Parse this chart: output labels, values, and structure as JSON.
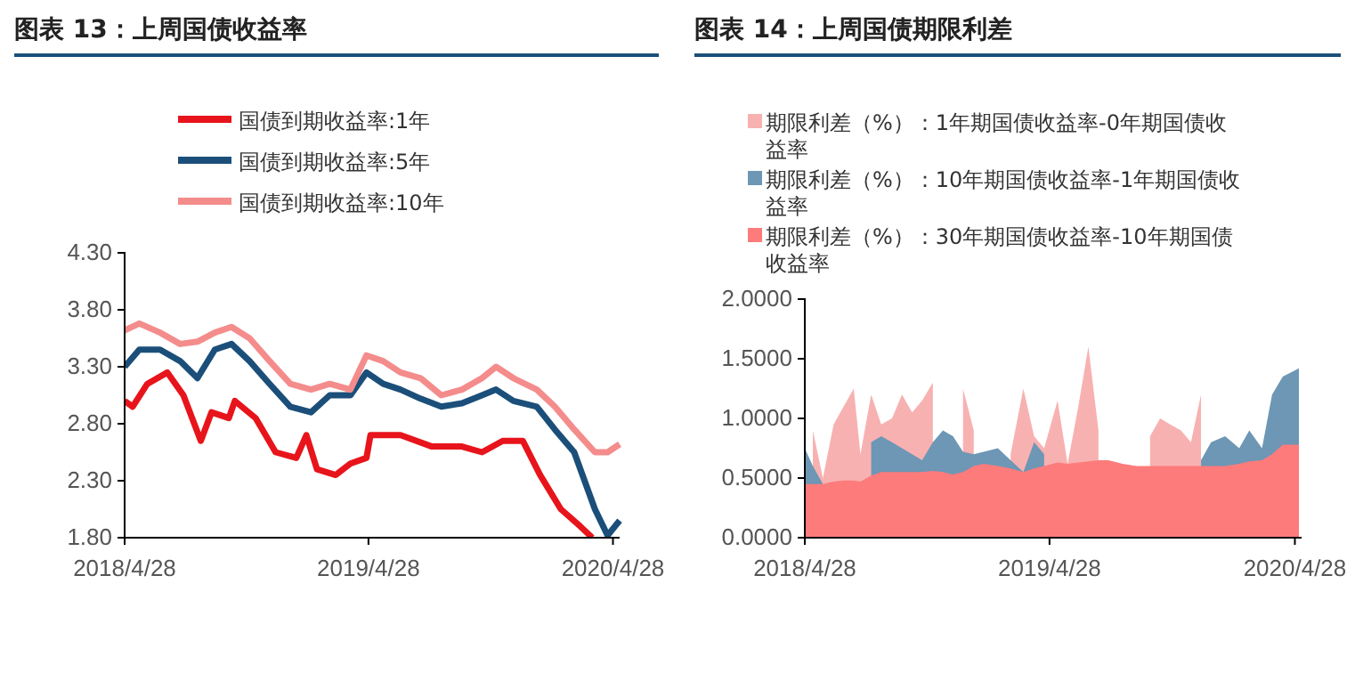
{
  "chart_data": [
    {
      "type": "line",
      "title": "图表 13：上周国债收益率",
      "legend": "top",
      "grid": false,
      "marker": "none",
      "xlim": [
        "2018-04-28",
        "2020-05-08"
      ],
      "xticks": [
        {
          "value": "2018-04-28",
          "label": "2018/4/28"
        },
        {
          "value": "2019-04-28",
          "label": "2019/4/28"
        },
        {
          "value": "2020-04-28",
          "label": "2020/4/28"
        }
      ],
      "ylim": [
        1.8,
        4.3
      ],
      "yticks": [
        {
          "value": 1.8,
          "label": "1.80"
        },
        {
          "value": 2.3,
          "label": "2.30"
        },
        {
          "value": 2.8,
          "label": "2.80"
        },
        {
          "value": 3.3,
          "label": "3.30"
        },
        {
          "value": 3.8,
          "label": "3.80"
        },
        {
          "value": 4.3,
          "label": "4.30"
        }
      ],
      "series": [
        {
          "name": "国债到期收益率:1年",
          "color": "#e8141b",
          "x": [
            "2018-04-28",
            "2018-05-10",
            "2018-06-01",
            "2018-07-01",
            "2018-07-25",
            "2018-08-20",
            "2018-09-05",
            "2018-10-01",
            "2018-10-10",
            "2018-11-10",
            "2018-12-10",
            "2019-01-10",
            "2019-01-25",
            "2019-02-10",
            "2019-03-10",
            "2019-04-01",
            "2019-04-25",
            "2019-05-01",
            "2019-06-15",
            "2019-08-01",
            "2019-09-15",
            "2019-10-15",
            "2019-11-15",
            "2019-12-15",
            "2020-01-10",
            "2020-02-10",
            "2020-03-10",
            "2020-03-28"
          ],
          "values": [
            3.0,
            2.95,
            3.15,
            3.25,
            3.05,
            2.65,
            2.9,
            2.85,
            3.0,
            2.85,
            2.55,
            2.5,
            2.7,
            2.4,
            2.35,
            2.45,
            2.5,
            2.7,
            2.7,
            2.6,
            2.6,
            2.55,
            2.65,
            2.65,
            2.35,
            2.05,
            1.9,
            1.8
          ]
        },
        {
          "name": "国债到期收益率:5年",
          "color": "#1b4f7a",
          "x": [
            "2018-04-28",
            "2018-05-20",
            "2018-06-20",
            "2018-07-20",
            "2018-08-15",
            "2018-09-10",
            "2018-10-05",
            "2018-11-01",
            "2018-12-01",
            "2019-01-01",
            "2019-02-01",
            "2019-03-01",
            "2019-04-01",
            "2019-04-25",
            "2019-05-20",
            "2019-06-15",
            "2019-07-15",
            "2019-08-15",
            "2019-09-15",
            "2019-10-15",
            "2019-11-05",
            "2019-12-01",
            "2020-01-05",
            "2020-02-01",
            "2020-03-01",
            "2020-04-01",
            "2020-04-20",
            "2020-05-08"
          ],
          "values": [
            3.3,
            3.45,
            3.45,
            3.35,
            3.2,
            3.45,
            3.5,
            3.35,
            3.15,
            2.95,
            2.9,
            3.05,
            3.05,
            3.25,
            3.15,
            3.1,
            3.02,
            2.95,
            2.98,
            3.05,
            3.1,
            3.0,
            2.95,
            2.75,
            2.55,
            2.05,
            1.82,
            1.95
          ]
        },
        {
          "name": "国债到期收益率:10年",
          "color": "#f48c8c",
          "x": [
            "2018-04-28",
            "2018-05-20",
            "2018-06-20",
            "2018-07-20",
            "2018-08-15",
            "2018-09-10",
            "2018-10-05",
            "2018-11-01",
            "2018-12-01",
            "2019-01-01",
            "2019-02-01",
            "2019-03-01",
            "2019-04-01",
            "2019-04-25",
            "2019-05-20",
            "2019-06-15",
            "2019-07-15",
            "2019-08-15",
            "2019-09-15",
            "2019-10-15",
            "2019-11-05",
            "2019-12-01",
            "2020-01-05",
            "2020-02-01",
            "2020-03-01",
            "2020-04-01",
            "2020-04-20",
            "2020-05-08"
          ],
          "values": [
            3.62,
            3.68,
            3.6,
            3.5,
            3.52,
            3.6,
            3.65,
            3.55,
            3.35,
            3.15,
            3.1,
            3.15,
            3.1,
            3.4,
            3.35,
            3.25,
            3.2,
            3.05,
            3.1,
            3.2,
            3.3,
            3.2,
            3.1,
            2.95,
            2.75,
            2.55,
            2.55,
            2.62
          ]
        }
      ]
    },
    {
      "type": "area",
      "title": "图表 14：上周国债期限利差",
      "legend": "top",
      "grid": false,
      "xlim": [
        "2018-04-28",
        "2020-05-08"
      ],
      "xticks": [
        {
          "value": "2018-04-28",
          "label": "2018/4/28"
        },
        {
          "value": "2019-04-28",
          "label": "2019/4/28"
        },
        {
          "value": "2020-04-28",
          "label": "2020/4/28"
        }
      ],
      "ylim": [
        0,
        2
      ],
      "yticks": [
        {
          "value": 0,
          "label": "0.0000"
        },
        {
          "value": 0.5,
          "label": "0.5000"
        },
        {
          "value": 1,
          "label": "1.0000"
        },
        {
          "value": 1.5,
          "label": "1.5000"
        },
        {
          "value": 2,
          "label": "2.0000"
        }
      ],
      "x": [
        "2018-04-28",
        "2018-05-10",
        "2018-05-25",
        "2018-06-10",
        "2018-06-25",
        "2018-07-10",
        "2018-07-20",
        "2018-08-05",
        "2018-08-20",
        "2018-09-05",
        "2018-09-20",
        "2018-10-05",
        "2018-10-20",
        "2018-11-05",
        "2018-11-20",
        "2018-12-05",
        "2018-12-20",
        "2019-01-05",
        "2019-01-20",
        "2019-02-10",
        "2019-03-01",
        "2019-03-20",
        "2019-04-05",
        "2019-04-20",
        "2019-05-10",
        "2019-05-25",
        "2019-06-10",
        "2019-06-25",
        "2019-07-10",
        "2019-07-25",
        "2019-08-15",
        "2019-09-05",
        "2019-09-25",
        "2019-10-10",
        "2019-10-25",
        "2019-11-10",
        "2019-11-25",
        "2019-12-10",
        "2019-12-25",
        "2020-01-15",
        "2020-02-05",
        "2020-02-20",
        "2020-03-10",
        "2020-03-25",
        "2020-04-10",
        "2020-05-04"
      ],
      "series": [
        {
          "name": "期限利差（%）：1年期国债收益率-0年期国债收益率",
          "color": "#f8b1b1",
          "values": [
            null,
            0.9,
            0.5,
            0.95,
            1.1,
            1.25,
            0.7,
            1.2,
            0.95,
            1.0,
            1.2,
            1.05,
            1.15,
            1.3,
            null,
            null,
            1.25,
            0.9,
            null,
            null,
            0.7,
            1.25,
            0.85,
            0.75,
            1.15,
            0.62,
            1.1,
            1.6,
            0.9,
            null,
            null,
            null,
            0.85,
            1.0,
            0.95,
            0.9,
            0.8,
            1.2,
            null,
            null,
            null,
            null,
            null,
            null,
            null,
            null
          ]
        },
        {
          "name": "期限利差（%）：10年期国债收益率-1年期国债收益率",
          "color": "#6d97b5",
          "values": [
            0.75,
            0.6,
            0.45,
            null,
            null,
            null,
            null,
            0.8,
            0.85,
            0.8,
            0.75,
            0.7,
            0.65,
            0.8,
            0.9,
            0.85,
            0.72,
            0.7,
            0.72,
            0.75,
            0.65,
            0.55,
            0.8,
            0.7,
            null,
            null,
            null,
            null,
            null,
            null,
            null,
            null,
            null,
            null,
            null,
            null,
            null,
            0.65,
            0.8,
            0.85,
            0.75,
            0.9,
            0.75,
            1.2,
            1.35,
            1.42
          ]
        },
        {
          "name": "期限利差（%）：30年期国债收益率-10年期国债收益率",
          "color": "#fd7b7b",
          "values": [
            0.45,
            0.45,
            0.45,
            0.47,
            0.48,
            0.48,
            0.47,
            0.52,
            0.55,
            0.55,
            0.55,
            0.55,
            0.55,
            0.56,
            0.55,
            0.53,
            0.55,
            0.6,
            0.62,
            0.6,
            0.58,
            0.55,
            0.58,
            0.6,
            0.63,
            0.62,
            0.63,
            0.64,
            0.65,
            0.65,
            0.62,
            0.6,
            0.6,
            0.6,
            0.6,
            0.6,
            0.6,
            0.6,
            0.6,
            0.6,
            0.62,
            0.64,
            0.65,
            0.7,
            0.78,
            0.78
          ]
        }
      ]
    }
  ]
}
